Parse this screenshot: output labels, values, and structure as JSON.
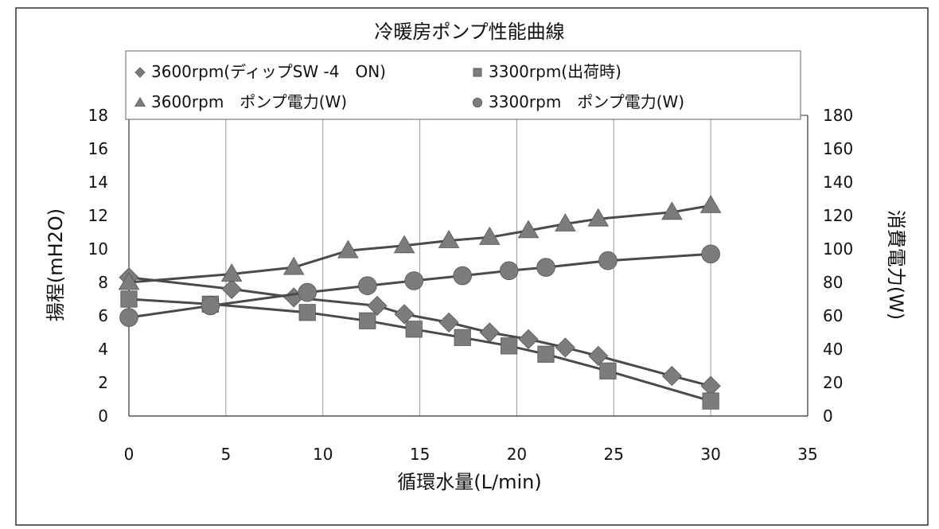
{
  "chart_data": {
    "type": "line",
    "title": "冷暖房ポンプ性能曲線",
    "xlabel": "循環水量(L/min)",
    "ylabel": "揚程(mH2O)",
    "y2label": "消費電力(W)",
    "xlim": [
      0,
      35
    ],
    "ylim": [
      0,
      18
    ],
    "y2lim": [
      0,
      180
    ],
    "x_ticks": [
      "0",
      "5",
      "10",
      "15",
      "20",
      "25",
      "30",
      "35"
    ],
    "y_ticks": [
      "0",
      "2",
      "4",
      "6",
      "8",
      "10",
      "12",
      "14",
      "16",
      "18"
    ],
    "y2_ticks": [
      "0",
      "20",
      "40",
      "60",
      "80",
      "100",
      "120",
      "140",
      "160",
      "180"
    ],
    "grid": "vertical",
    "legend_position": "top",
    "series": [
      {
        "name": "3600rpm(ディップSW -4　ON)",
        "axis": "left",
        "marker": "diamond",
        "x": [
          0,
          5.3,
          8.5,
          12.8,
          14.2,
          16.5,
          18.6,
          20.6,
          22.5,
          24.2,
          28,
          30
        ],
        "y": [
          8.3,
          7.6,
          7.1,
          6.6,
          6.1,
          5.6,
          5.0,
          4.6,
          4.1,
          3.6,
          2.4,
          1.8
        ]
      },
      {
        "name": "3300rpm(出荷時)",
        "axis": "left",
        "marker": "square",
        "x": [
          0,
          4.2,
          9.2,
          12.3,
          14.7,
          17.2,
          19.6,
          21.5,
          24.7,
          30
        ],
        "y": [
          7.0,
          6.7,
          6.2,
          5.7,
          5.2,
          4.7,
          4.2,
          3.7,
          2.7,
          0.9
        ]
      },
      {
        "name": "3600rpm　ポンプ電力(W)",
        "axis": "right",
        "marker": "triangle",
        "x": [
          0,
          5.3,
          8.5,
          11.3,
          14.2,
          16.5,
          18.6,
          20.6,
          22.5,
          24.2,
          28,
          30
        ],
        "y": [
          80,
          85,
          89,
          99,
          102,
          105,
          107,
          111,
          115,
          118,
          122,
          126
        ]
      },
      {
        "name": "3300rpm　ポンプ電力(W)",
        "axis": "right",
        "marker": "circle",
        "x": [
          0,
          4.2,
          9.2,
          12.3,
          14.7,
          17.2,
          19.6,
          21.5,
          24.7,
          30
        ],
        "y": [
          59,
          66,
          74,
          78,
          81,
          84,
          87,
          89,
          93,
          97
        ]
      }
    ]
  },
  "colors": {
    "series": "#4a4a4a",
    "marker": "#7c7c7c",
    "grid": "#9a9a9a",
    "frame": "#333333"
  }
}
